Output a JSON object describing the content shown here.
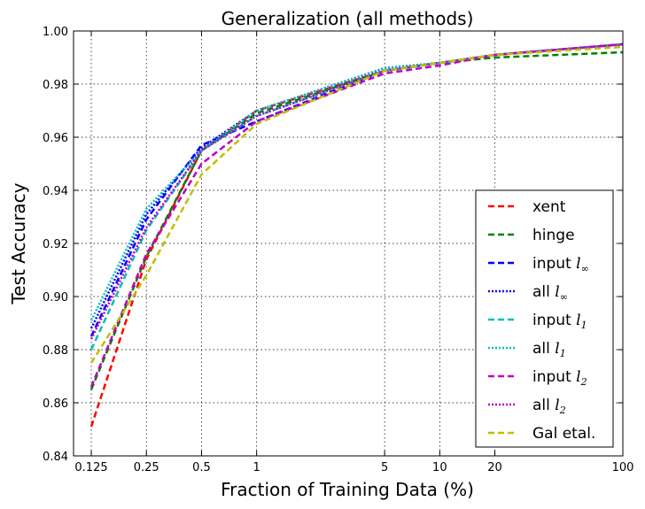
{
  "chart_data": {
    "type": "line",
    "title": "Generalization (all methods)",
    "xlabel": "Fraction of Training Data (%)",
    "ylabel": "Test Accuracy",
    "xscale": "log",
    "xlim": [
      0.1,
      100
    ],
    "ylim": [
      0.84,
      1.0
    ],
    "xticks": [
      0.125,
      0.25,
      0.5,
      1,
      5,
      10,
      20,
      100
    ],
    "xtick_labels": [
      "0.125",
      "0.25",
      "0.5",
      "1",
      "5",
      "10",
      "20",
      "100"
    ],
    "yticks": [
      0.84,
      0.86,
      0.88,
      0.9,
      0.92,
      0.94,
      0.96,
      0.98,
      1.0
    ],
    "ytick_labels": [
      "0.84",
      "0.86",
      "0.88",
      "0.90",
      "0.92",
      "0.94",
      "0.96",
      "0.98",
      "1.00"
    ],
    "grid": true,
    "legend_position": "lower-right",
    "x": [
      0.125,
      0.25,
      0.5,
      1,
      5,
      10,
      20,
      100
    ],
    "series": [
      {
        "name": "xent",
        "label_main": "xent",
        "label_math": "",
        "label_sub": "",
        "color": "#ff0000",
        "style": "dashed",
        "values": [
          0.851,
          0.914,
          0.955,
          0.97,
          0.985,
          0.988,
          0.991,
          0.995
        ]
      },
      {
        "name": "hinge",
        "label_main": "hinge",
        "label_math": "",
        "label_sub": "",
        "color": "#008000",
        "style": "dashed",
        "values": [
          0.865,
          0.915,
          0.955,
          0.969,
          0.985,
          0.988,
          0.99,
          0.992
        ]
      },
      {
        "name": "input l∞",
        "label_main": "input ",
        "label_math": "l",
        "label_sub": "∞",
        "color": "#0000ff",
        "style": "dashed",
        "values": [
          0.885,
          0.929,
          0.957,
          0.966,
          0.985,
          0.988,
          0.991,
          0.995
        ]
      },
      {
        "name": "all l∞",
        "label_main": "all ",
        "label_math": "l",
        "label_sub": "∞",
        "color": "#0000ff",
        "style": "dotted",
        "values": [
          0.888,
          0.931,
          0.956,
          0.97,
          0.986,
          0.988,
          0.991,
          0.995
        ]
      },
      {
        "name": "input l1",
        "label_main": "input ",
        "label_math": "l",
        "label_sub": "1",
        "color": "#00bfbf",
        "style": "dashed",
        "values": [
          0.88,
          0.925,
          0.955,
          0.968,
          0.985,
          0.988,
          0.991,
          0.995
        ]
      },
      {
        "name": "all l1",
        "label_main": "all ",
        "label_math": "l",
        "label_sub": "1",
        "color": "#00bfbf",
        "style": "dotted",
        "values": [
          0.891,
          0.933,
          0.955,
          0.97,
          0.986,
          0.988,
          0.991,
          0.995
        ]
      },
      {
        "name": "input l2",
        "label_main": "input ",
        "label_math": "l",
        "label_sub": "2",
        "color": "#bf00bf",
        "style": "dashed",
        "values": [
          0.866,
          0.916,
          0.95,
          0.966,
          0.984,
          0.987,
          0.991,
          0.995
        ]
      },
      {
        "name": "all l2",
        "label_main": "all ",
        "label_math": "l",
        "label_sub": "2",
        "color": "#bf00bf",
        "style": "dotted",
        "values": [
          0.884,
          0.926,
          0.955,
          0.968,
          0.985,
          0.988,
          0.991,
          0.995
        ]
      },
      {
        "name": "Gal etal.",
        "label_main": "Gal etal.",
        "label_math": "",
        "label_sub": "",
        "color": "#bfbf00",
        "style": "dashed",
        "values": [
          0.875,
          0.908,
          0.946,
          0.965,
          0.985,
          0.988,
          0.991,
          0.994
        ]
      }
    ]
  }
}
